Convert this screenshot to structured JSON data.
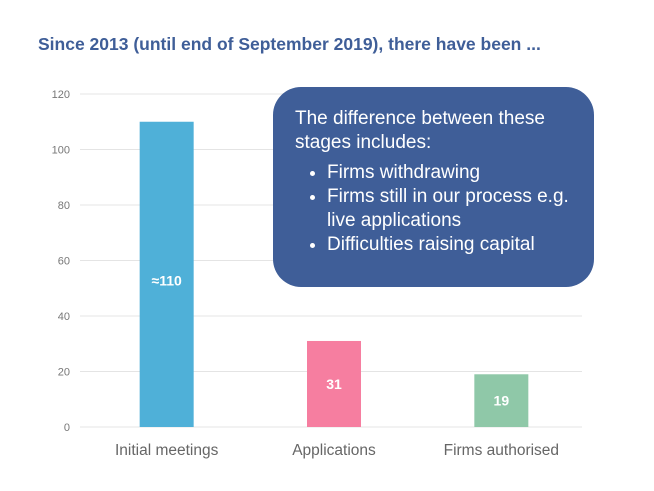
{
  "title": "Since 2013 (until end of September 2019), there have been ...",
  "chart_data": {
    "type": "bar",
    "categories": [
      "Initial meetings",
      "Applications",
      "Firms authorised"
    ],
    "values": [
      110,
      31,
      19
    ],
    "data_labels": [
      "≈110",
      "31",
      "19"
    ],
    "colors": [
      "#4fb0d8",
      "#f67ea0",
      "#8fc8a8"
    ],
    "ylim": [
      0,
      120
    ],
    "yticks": [
      "0",
      "20",
      "40",
      "60",
      "80",
      "100",
      "120"
    ],
    "grid": true,
    "legend": "none"
  },
  "callout": {
    "heading": "The difference between these stages includes:",
    "items": [
      "Firms withdrawing",
      "Firms still in our process e.g. live applications",
      "Difficulties raising capital"
    ]
  }
}
